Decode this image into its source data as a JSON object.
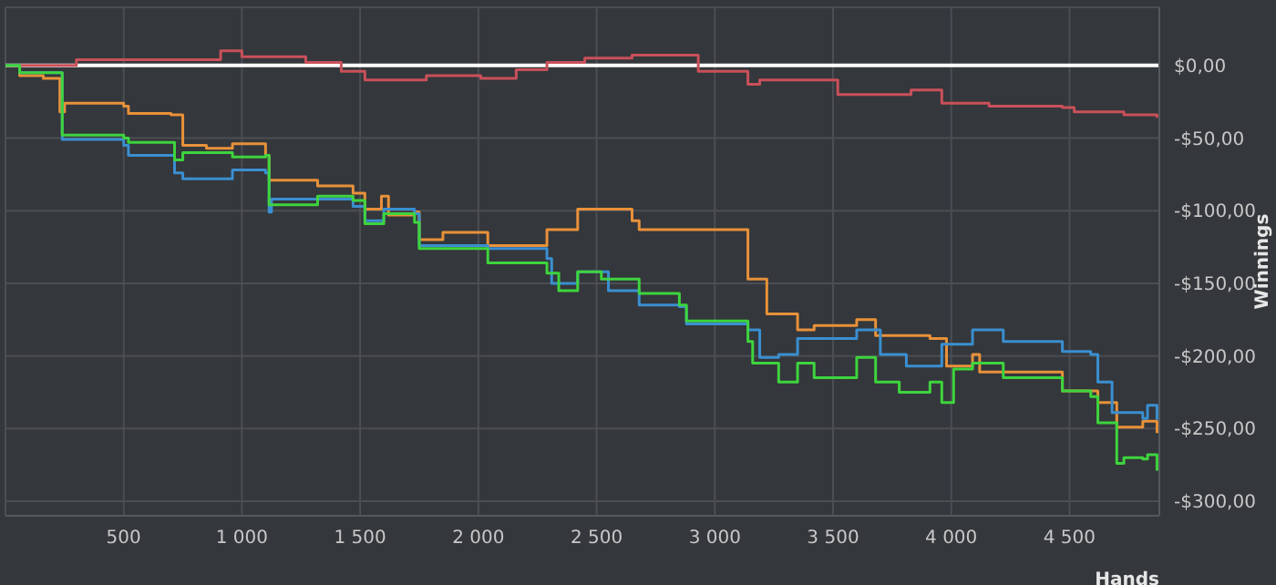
{
  "chart_data": {
    "type": "step",
    "xlabel": "Hands",
    "ylabel": "Winnings",
    "xlim": [
      0,
      4880
    ],
    "ylim": [
      -310,
      40
    ],
    "xticks": [
      500,
      {
        "value": 1000,
        "label": "1 000"
      },
      {
        "value": 1500,
        "label": "1 500"
      },
      {
        "value": 2000,
        "label": "2 000"
      },
      {
        "value": 2500,
        "label": "2 500"
      },
      {
        "value": 3000,
        "label": "3 000"
      },
      {
        "value": 3500,
        "label": "3 500"
      },
      {
        "value": 4000,
        "label": "4 000"
      },
      {
        "value": 4500,
        "label": "4 500"
      }
    ],
    "yticks": [
      {
        "value": 0,
        "label": "$0,00"
      },
      {
        "value": -50,
        "label": "-$50,00"
      },
      {
        "value": -100,
        "label": "-$100,00"
      },
      {
        "value": -150,
        "label": "-$150,00"
      },
      {
        "value": -200,
        "label": "-$200,00"
      },
      {
        "value": -250,
        "label": "-$250,00"
      },
      {
        "value": -300,
        "label": "-$300,00"
      }
    ],
    "grid": true,
    "ref_lines": [
      {
        "axis": "y",
        "value": 0,
        "color": "#ffffff"
      }
    ],
    "series": [
      {
        "color": "#c9505a",
        "x": [
          0,
          300,
          910,
          1000,
          1270,
          1420,
          1520,
          1780,
          2010,
          2160,
          2290,
          2450,
          2650,
          2680,
          2930,
          3140,
          3190,
          3520,
          3830,
          3960,
          4160,
          4470,
          4520,
          4730,
          4870
        ],
        "values": [
          0,
          4,
          10,
          6,
          2,
          -4,
          -10,
          -7,
          -9,
          -3,
          2,
          5,
          7,
          7,
          -4,
          -13,
          -10,
          -20,
          -17,
          -26,
          -28,
          -29,
          -32,
          -34,
          -36
        ]
      },
      {
        "color": "#e8913a",
        "x": [
          0,
          60,
          160,
          230,
          250,
          500,
          520,
          700,
          750,
          850,
          960,
          1100,
          1115,
          1320,
          1470,
          1520,
          1590,
          1620,
          1730,
          1750,
          1850,
          2040,
          2290,
          2420,
          2650,
          2680,
          3140,
          3220,
          3350,
          3420,
          3600,
          3680,
          3910,
          3980,
          4090,
          4120,
          4470,
          4620,
          4700,
          4810,
          4870
        ],
        "values": [
          0,
          -7,
          -9,
          -32,
          -26,
          -28,
          -33,
          -34,
          -55,
          -57,
          -54,
          -62,
          -79,
          -83,
          -88,
          -99,
          -90,
          -103,
          -101,
          -120,
          -115,
          -124,
          -113,
          -99,
          -107,
          -113,
          -147,
          -171,
          -182,
          -179,
          -175,
          -186,
          -188,
          -207,
          -199,
          -211,
          -224,
          -232,
          -249,
          -245,
          -253
        ]
      },
      {
        "color": "#3a8fd0",
        "x": [
          0,
          60,
          240,
          500,
          520,
          715,
          750,
          960,
          1100,
          1115,
          1125,
          1470,
          1520,
          1600,
          1730,
          1750,
          2040,
          2290,
          2310,
          2420,
          2550,
          2680,
          2850,
          2880,
          3140,
          3190,
          3270,
          3350,
          3600,
          3700,
          3810,
          3960,
          4090,
          4220,
          4470,
          4590,
          4620,
          4680,
          4810,
          4830,
          4870
        ],
        "values": [
          0,
          -5,
          -51,
          -55,
          -62,
          -74,
          -78,
          -72,
          -74,
          -101,
          -92,
          -97,
          -107,
          -99,
          -102,
          -124,
          -126,
          -133,
          -150,
          -142,
          -155,
          -165,
          -166,
          -178,
          -182,
          -201,
          -199,
          -188,
          -182,
          -199,
          -207,
          -192,
          -182,
          -190,
          -197,
          -199,
          -218,
          -239,
          -243,
          -234,
          -244
        ]
      },
      {
        "color": "#3ed43e",
        "x": [
          0,
          60,
          240,
          500,
          520,
          715,
          750,
          960,
          1100,
          1115,
          1320,
          1470,
          1520,
          1600,
          1730,
          1750,
          2040,
          2290,
          2340,
          2420,
          2520,
          2680,
          2850,
          2880,
          3140,
          3160,
          3270,
          3350,
          3420,
          3600,
          3680,
          3780,
          3910,
          3960,
          4010,
          4090,
          4220,
          4470,
          4590,
          4620,
          4700,
          4730,
          4810,
          4830,
          4870
        ],
        "values": [
          0,
          -5,
          -48,
          -50,
          -53,
          -65,
          -60,
          -63,
          -62,
          -96,
          -90,
          -93,
          -109,
          -102,
          -108,
          -126,
          -136,
          -143,
          -155,
          -142,
          -147,
          -157,
          -165,
          -176,
          -190,
          -205,
          -218,
          -205,
          -215,
          -201,
          -218,
          -225,
          -218,
          -232,
          -209,
          -205,
          -215,
          -224,
          -228,
          -246,
          -274,
          -270,
          -271,
          -268,
          -279
        ]
      }
    ]
  }
}
